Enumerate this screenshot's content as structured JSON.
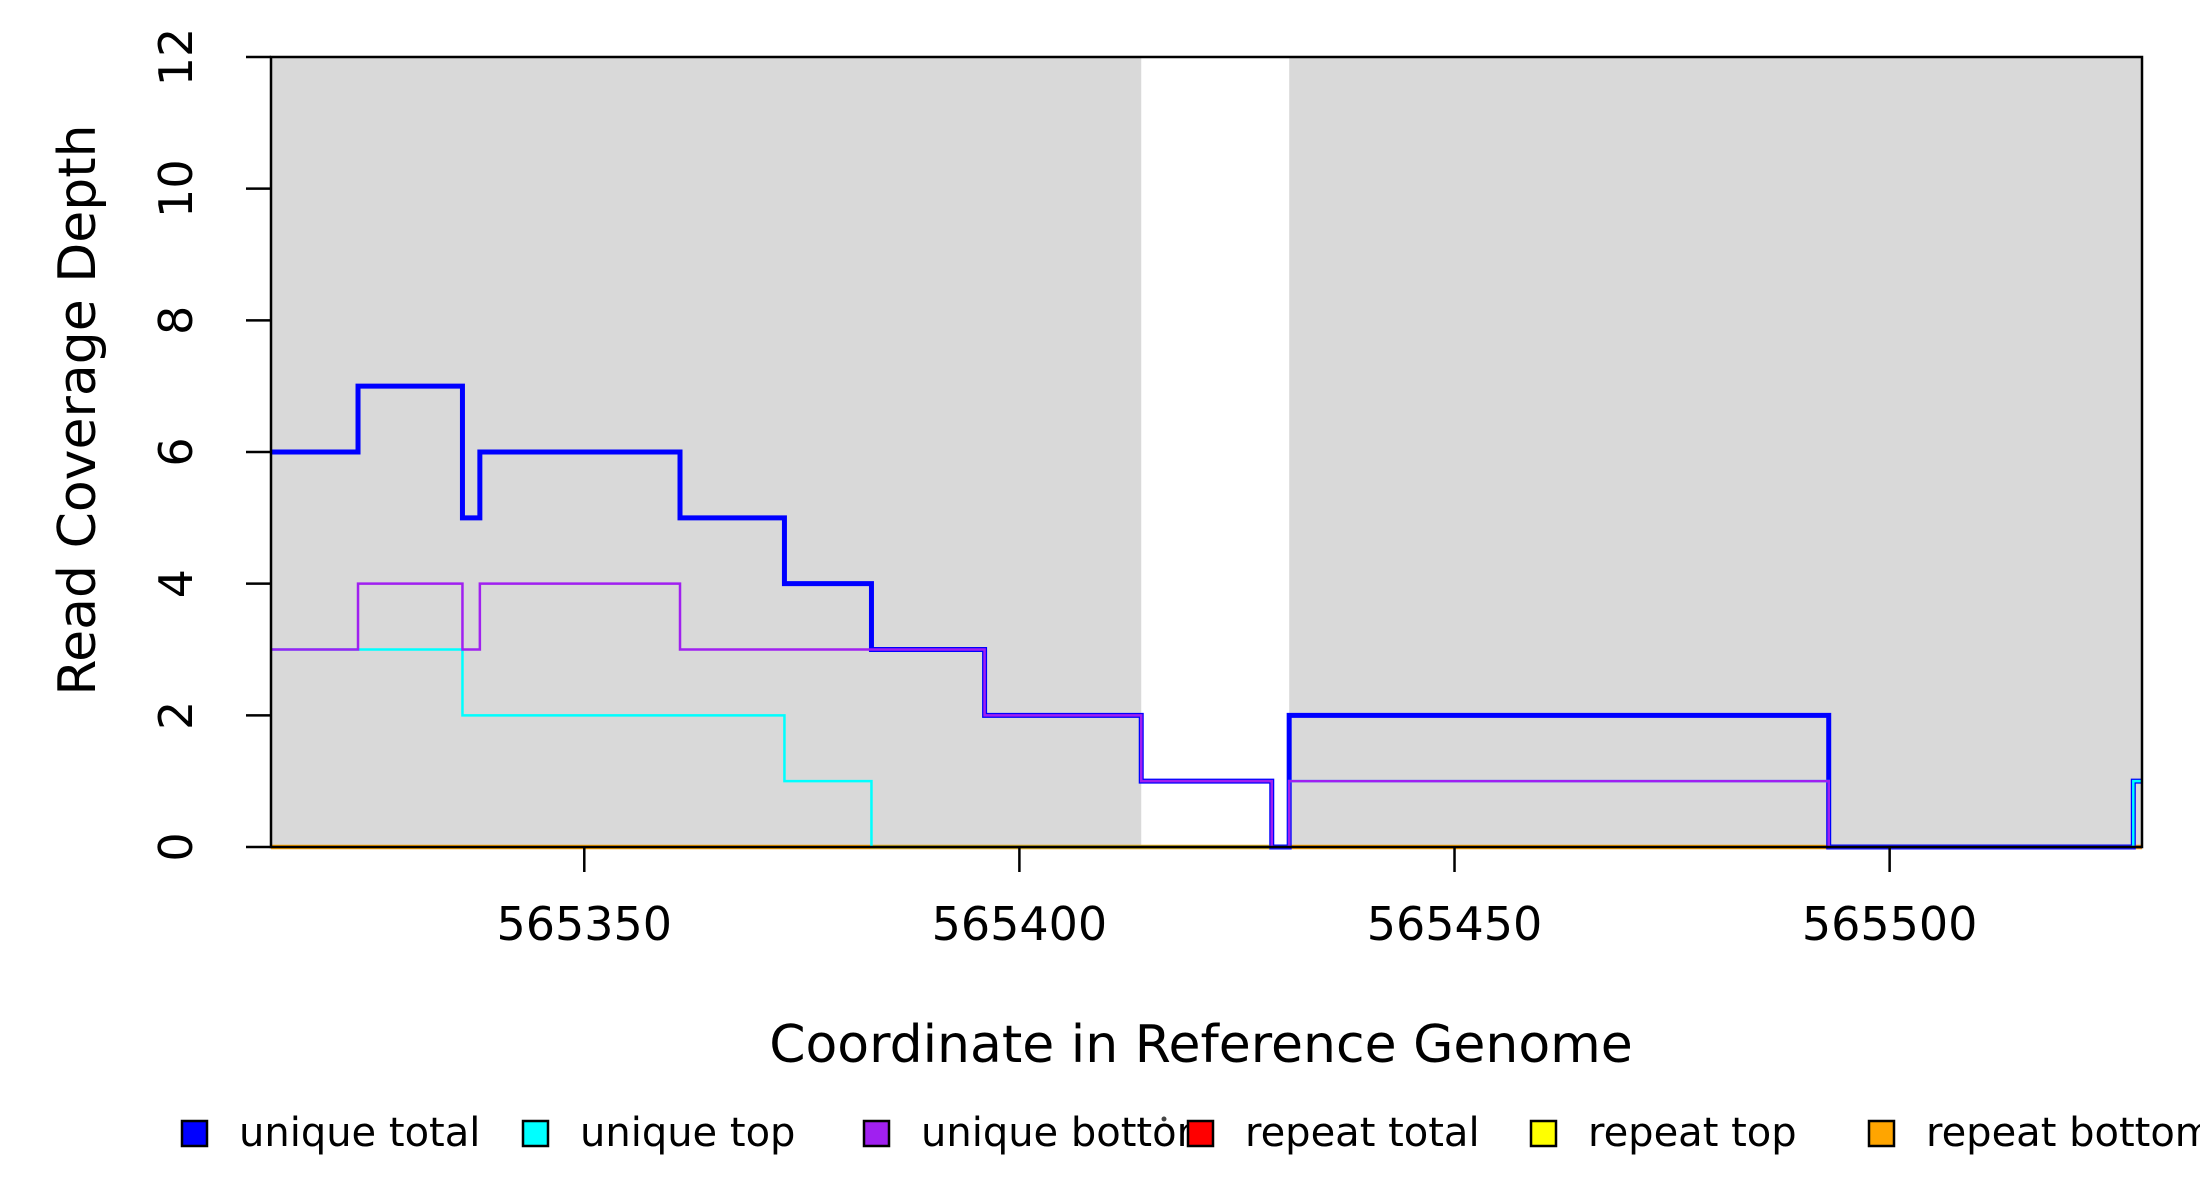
{
  "chart_data": {
    "type": "line",
    "step": true,
    "title": "",
    "xlabel": "Coordinate in Reference Genome",
    "ylabel": "Read Coverage Depth",
    "xlim": [
      565314,
      565529
    ],
    "ylim": [
      0,
      12
    ],
    "xticks": [
      565350,
      565400,
      565450,
      565500
    ],
    "yticks": [
      0,
      2,
      4,
      6,
      8,
      10,
      12
    ],
    "grid": false,
    "background_shading": {
      "color": "#d9d9d9",
      "regions": [
        {
          "x0": 565314,
          "x1": 565414
        },
        {
          "x0": 565431,
          "x1": 565529
        }
      ]
    },
    "series": [
      {
        "name": "repeat total",
        "color": "#ff0000",
        "width": 3,
        "steps": [
          [
            565314,
            0
          ]
        ]
      },
      {
        "name": "repeat top",
        "color": "#ffff00",
        "width": 3,
        "steps": [
          [
            565314,
            0
          ]
        ]
      },
      {
        "name": "repeat bottom",
        "color": "#ffa500",
        "width": 4.5,
        "steps": [
          [
            565314,
            0
          ]
        ]
      },
      {
        "name": "unique total",
        "color": "#0000ff",
        "width": 5,
        "steps": [
          [
            565314,
            6
          ],
          [
            565324,
            7
          ],
          [
            565336,
            5
          ],
          [
            565338,
            6
          ],
          [
            565361,
            5
          ],
          [
            565373,
            4
          ],
          [
            565383,
            3
          ],
          [
            565396,
            2
          ],
          [
            565414,
            1
          ],
          [
            565429,
            0
          ],
          [
            565431,
            2
          ],
          [
            565493,
            0
          ],
          [
            565528,
            1
          ]
        ]
      },
      {
        "name": "unique top",
        "color": "#00ffff",
        "width": 2.5,
        "steps": [
          [
            565314,
            3
          ],
          [
            565336,
            2
          ],
          [
            565373,
            1
          ],
          [
            565383,
            0
          ],
          [
            565431,
            1
          ],
          [
            565493,
            0
          ],
          [
            565528,
            1
          ]
        ]
      },
      {
        "name": "unique bottom",
        "color": "#a020f0",
        "width": 2.5,
        "steps": [
          [
            565314,
            3
          ],
          [
            565324,
            4
          ],
          [
            565336,
            3
          ],
          [
            565338,
            4
          ],
          [
            565361,
            3
          ],
          [
            565396,
            2
          ],
          [
            565414,
            1
          ],
          [
            565429,
            0
          ],
          [
            565431,
            1
          ],
          [
            565493,
            0
          ]
        ]
      }
    ],
    "legend": {
      "position": "bottom",
      "items": [
        {
          "label": "unique total",
          "color": "#0000ff"
        },
        {
          "label": "unique top",
          "color": "#00ffff"
        },
        {
          "label": "unique bottom",
          "color": "#a020f0"
        },
        {
          "label": "repeat total",
          "color": "#ff0000"
        },
        {
          "label": "repeat top",
          "color": "#ffff00"
        },
        {
          "label": "repeat bottom",
          "color": "#ffa500"
        }
      ]
    },
    "axis_color": "#000000"
  }
}
